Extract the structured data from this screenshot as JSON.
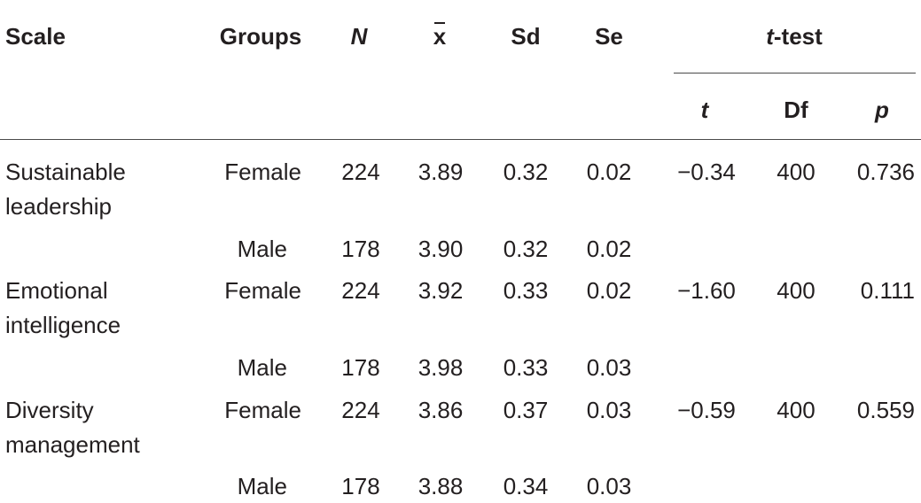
{
  "header": {
    "scale": "Scale",
    "groups": "Groups",
    "n": "N",
    "mean": "x",
    "sd": "Sd",
    "se": "Se",
    "ttest_prefix": "t",
    "ttest_suffix": "-test",
    "t": "t",
    "df": "Df",
    "p": "p"
  },
  "rows": [
    {
      "scale_line1": "Sustainable",
      "scale_line2": "leadership",
      "female": {
        "group": "Female",
        "n": "224",
        "mean": "3.89",
        "sd": "0.32",
        "se": "0.02"
      },
      "male": {
        "group": "Male",
        "n": "178",
        "mean": "3.90",
        "sd": "0.32",
        "se": "0.02"
      },
      "t": "−0.34",
      "df": "400",
      "p": "0.736"
    },
    {
      "scale_line1": "Emotional",
      "scale_line2": "intelligence",
      "female": {
        "group": "Female",
        "n": "224",
        "mean": "3.92",
        "sd": "0.33",
        "se": "0.02"
      },
      "male": {
        "group": "Male",
        "n": "178",
        "mean": "3.98",
        "sd": "0.33",
        "se": "0.03"
      },
      "t": "−1.60",
      "df": "400",
      "p": "0.111"
    },
    {
      "scale_line1": "Diversity",
      "scale_line2": "management",
      "female": {
        "group": "Female",
        "n": "224",
        "mean": "3.86",
        "sd": "0.37",
        "se": "0.03"
      },
      "male": {
        "group": "Male",
        "n": "178",
        "mean": "3.88",
        "sd": "0.34",
        "se": "0.03"
      },
      "t": "−0.59",
      "df": "400",
      "p": "0.559"
    }
  ]
}
